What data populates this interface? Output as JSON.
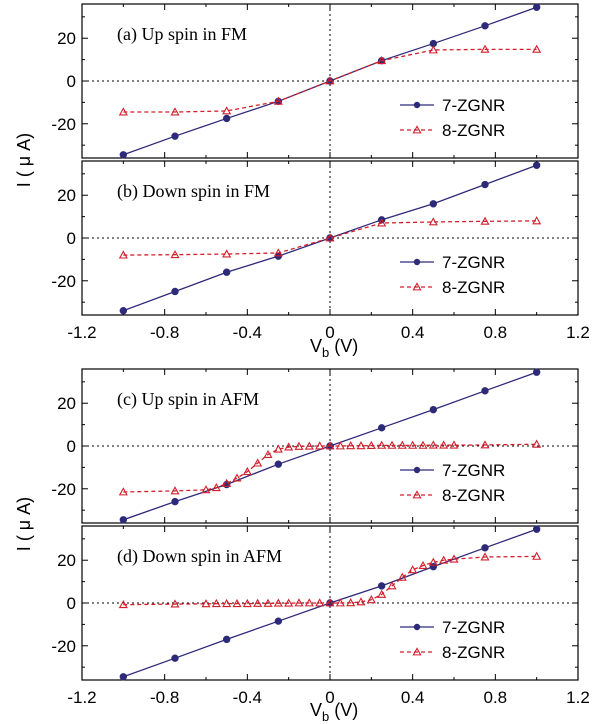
{
  "colors": {
    "series_7": "#2e2a7a",
    "series_8": "#d21f2b",
    "axis": "#000000"
  },
  "axes": {
    "x_ticks": [
      -1.2,
      -0.8,
      -0.4,
      0,
      0.4,
      0.8,
      1.2
    ],
    "x_tick_labels": [
      "-1.2",
      "-0.8",
      "-0.4",
      "0",
      "0.4",
      "0.8",
      "1.2"
    ],
    "y_ticks": [
      -20,
      0,
      20
    ],
    "y_tick_labels": [
      "-20",
      "0",
      "20"
    ],
    "xlabel_main": "V",
    "xlabel_sub": "b",
    "xlabel_unit": " (V)",
    "ylabel": "I ( μ A)"
  },
  "chart_data": [
    {
      "type": "line",
      "title": "(a)  Up spin in FM",
      "xlim": [
        -1.2,
        1.2
      ],
      "ylim": [
        -36,
        36
      ],
      "series": [
        {
          "name": "7-ZGNR",
          "marker": "circle",
          "line": "solid",
          "x": [
            -1.0,
            -0.75,
            -0.5,
            -0.25,
            0,
            0.25,
            0.5,
            0.75,
            1.0
          ],
          "y": [
            -34.5,
            -25.8,
            -17.5,
            -9.5,
            0,
            9.5,
            17.5,
            25.8,
            34.5
          ]
        },
        {
          "name": "8-ZGNR",
          "marker": "triangle",
          "line": "dashed",
          "x": [
            -1.0,
            -0.75,
            -0.5,
            -0.25,
            0,
            0.25,
            0.5,
            0.75,
            1.0
          ],
          "y": [
            -14.5,
            -14.5,
            -14.0,
            -9.5,
            0,
            9.5,
            14.5,
            14.8,
            14.8
          ]
        }
      ]
    },
    {
      "type": "line",
      "title": "(b)  Down spin in FM",
      "xlim": [
        -1.2,
        1.2
      ],
      "ylim": [
        -36,
        36
      ],
      "series": [
        {
          "name": "7-ZGNR",
          "marker": "circle",
          "line": "solid",
          "x": [
            -1.0,
            -0.75,
            -0.5,
            -0.25,
            0,
            0.25,
            0.5,
            0.75,
            1.0
          ],
          "y": [
            -34.0,
            -25.0,
            -16.0,
            -8.5,
            0,
            8.5,
            16.0,
            25.0,
            34.0
          ]
        },
        {
          "name": "8-ZGNR",
          "marker": "triangle",
          "line": "dashed",
          "x": [
            -1.0,
            -0.75,
            -0.5,
            -0.25,
            0,
            0.25,
            0.5,
            0.75,
            1.0
          ],
          "y": [
            -8.0,
            -7.8,
            -7.5,
            -7.0,
            0,
            7.0,
            7.5,
            7.8,
            8.0
          ]
        }
      ]
    },
    {
      "type": "line",
      "title": "(c)  Up spin in AFM",
      "xlim": [
        -1.2,
        1.2
      ],
      "ylim": [
        -36,
        36
      ],
      "series": [
        {
          "name": "7-ZGNR",
          "marker": "circle",
          "line": "solid",
          "x": [
            -1.0,
            -0.75,
            -0.5,
            -0.25,
            0,
            0.25,
            0.5,
            0.75,
            1.0
          ],
          "y": [
            -34.5,
            -26.0,
            -18.0,
            -8.5,
            0,
            8.5,
            17.0,
            25.8,
            34.5
          ]
        },
        {
          "name": "8-ZGNR",
          "marker": "triangle",
          "line": "dashed",
          "x": [
            -1.0,
            -0.75,
            -0.6,
            -0.55,
            -0.5,
            -0.45,
            -0.4,
            -0.35,
            -0.3,
            -0.25,
            -0.2,
            -0.15,
            -0.1,
            -0.05,
            0,
            0.05,
            0.1,
            0.15,
            0.2,
            0.25,
            0.3,
            0.35,
            0.4,
            0.45,
            0.5,
            0.55,
            0.6,
            0.75,
            1.0
          ],
          "y": [
            -21.5,
            -21.0,
            -20.5,
            -19.5,
            -17.5,
            -15.0,
            -12.0,
            -8.0,
            -4.0,
            -1.5,
            -0.5,
            -0.2,
            -0.1,
            0,
            0,
            0,
            0.1,
            0.1,
            0.2,
            0.3,
            0.3,
            0.3,
            0.3,
            0.3,
            0.4,
            0.4,
            0.4,
            0.5,
            0.8
          ]
        }
      ]
    },
    {
      "type": "line",
      "title": "(d)  Down spin in AFM",
      "xlim": [
        -1.2,
        1.2
      ],
      "ylim": [
        -36,
        36
      ],
      "series": [
        {
          "name": "7-ZGNR",
          "marker": "circle",
          "line": "solid",
          "x": [
            -1.0,
            -0.75,
            -0.5,
            -0.25,
            0,
            0.25,
            0.5,
            0.75,
            1.0
          ],
          "y": [
            -34.5,
            -25.8,
            -17.0,
            -8.5,
            0,
            8.0,
            17.0,
            25.8,
            34.5
          ]
        },
        {
          "name": "8-ZGNR",
          "marker": "triangle",
          "line": "dashed",
          "x": [
            -1.0,
            -0.75,
            -0.6,
            -0.55,
            -0.5,
            -0.45,
            -0.4,
            -0.35,
            -0.3,
            -0.25,
            -0.2,
            -0.15,
            -0.1,
            -0.05,
            0,
            0.05,
            0.1,
            0.15,
            0.2,
            0.25,
            0.3,
            0.35,
            0.4,
            0.45,
            0.5,
            0.55,
            0.6,
            0.75,
            1.0
          ],
          "y": [
            -0.8,
            -0.5,
            -0.4,
            -0.3,
            -0.3,
            -0.3,
            -0.3,
            -0.2,
            -0.2,
            -0.1,
            -0.1,
            0,
            0,
            0,
            0,
            0,
            0.1,
            0.5,
            1.5,
            4.0,
            8.0,
            12.0,
            15.5,
            17.5,
            19.0,
            20.0,
            20.5,
            21.5,
            21.8
          ]
        }
      ]
    }
  ]
}
